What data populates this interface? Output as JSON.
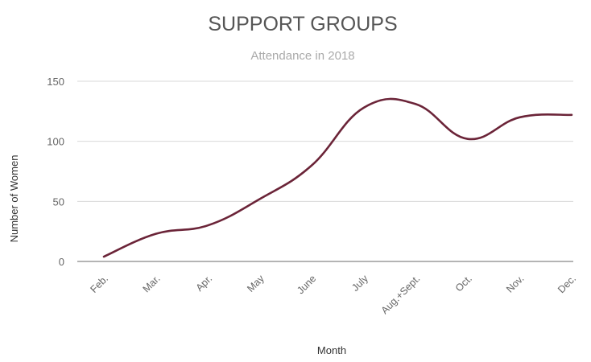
{
  "chart_data": {
    "type": "line",
    "title": "SUPPORT GROUPS",
    "subtitle": "Attendance in 2018",
    "xlabel": "Month",
    "ylabel": "Number of Women",
    "categories": [
      "Feb.",
      "Mar.",
      "Apr.",
      "May",
      "June",
      "July",
      "Aug.+Sept.",
      "Oct.",
      "Nov.",
      "Dec."
    ],
    "series": [
      {
        "values": [
          4,
          23,
          30,
          52,
          80,
          128,
          131,
          102,
          120,
          122
        ]
      }
    ],
    "ylim": [
      0,
      150
    ],
    "yticks": [
      0,
      50,
      100,
      150
    ],
    "grid": true,
    "legend": "none"
  },
  "colors": {
    "line": "#6b2438",
    "grid": "#d9d9d9",
    "axis": "#888888",
    "title": "#555555",
    "subtitle": "#aaaaaa",
    "tick": "#666666",
    "label": "#333333"
  }
}
